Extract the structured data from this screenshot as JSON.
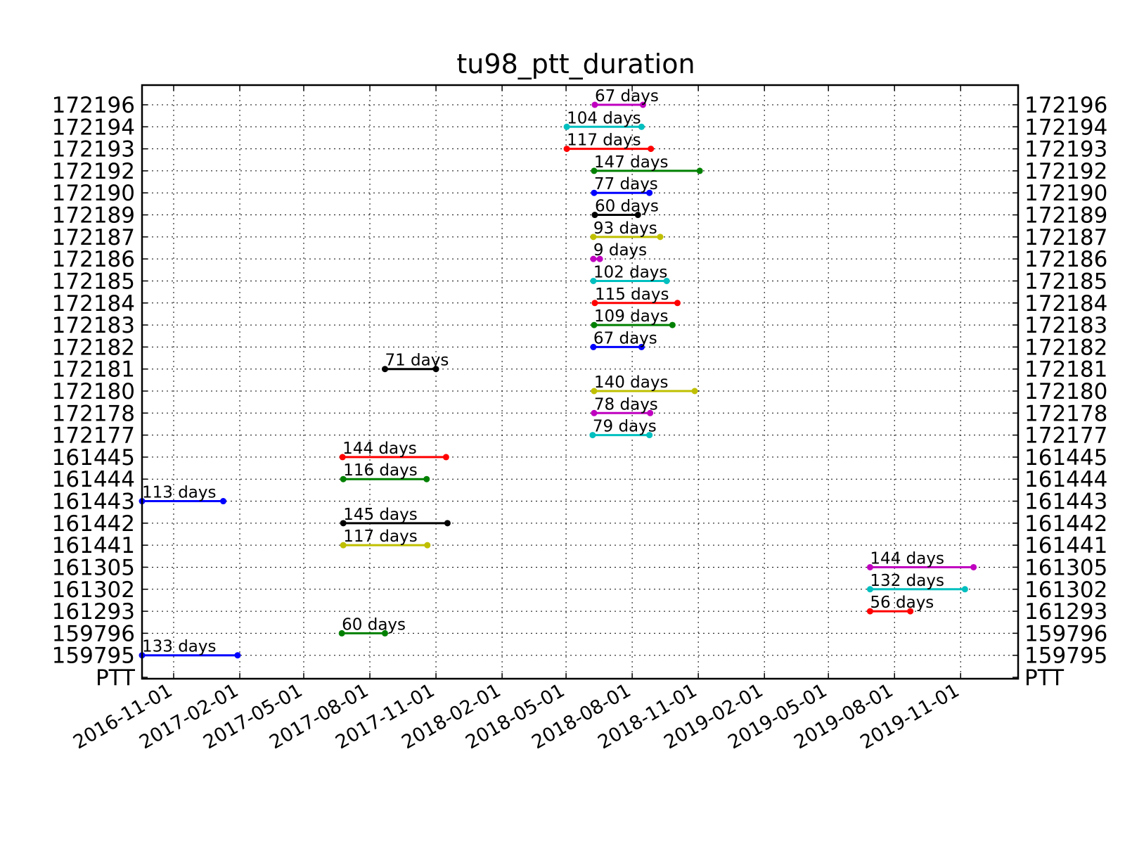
{
  "chart_data": {
    "type": "gantt",
    "title": "tu98_ptt_duration",
    "xlabel": "",
    "ylabel": "",
    "x_axis": "date",
    "xlim": [
      "2016-09-18",
      "2020-01-20"
    ],
    "x_ticks": [
      "2016-11-01",
      "2017-02-01",
      "2017-05-01",
      "2017-08-01",
      "2017-11-01",
      "2018-02-01",
      "2018-05-01",
      "2018-08-01",
      "2018-11-01",
      "2019-02-01",
      "2019-05-01",
      "2019-08-01",
      "2019-11-01"
    ],
    "y_categories": [
      "PTT",
      "159795",
      "159796",
      "161293",
      "161302",
      "161305",
      "161441",
      "161442",
      "161443",
      "161444",
      "161445",
      "172177",
      "172178",
      "172180",
      "172181",
      "172182",
      "172183",
      "172184",
      "172185",
      "172186",
      "172187",
      "172189",
      "172190",
      "172192",
      "172193",
      "172194",
      "172196"
    ],
    "y_ticks_both_sides": true,
    "grid": true,
    "grid_style": "dotted",
    "series": [
      {
        "ptt": "159795",
        "start": "2016-09-18",
        "end": "2017-01-29",
        "label": "133 days",
        "color": "#0000ff"
      },
      {
        "ptt": "159796",
        "start": "2017-06-23",
        "end": "2017-08-22",
        "label": "60 days",
        "color": "#008000"
      },
      {
        "ptt": "161293",
        "start": "2019-06-28",
        "end": "2019-08-23",
        "label": "56 days",
        "color": "#ff0000"
      },
      {
        "ptt": "161302",
        "start": "2019-06-28",
        "end": "2019-11-07",
        "label": "132 days",
        "color": "#00bfbf"
      },
      {
        "ptt": "161305",
        "start": "2019-06-28",
        "end": "2019-11-19",
        "label": "144 days",
        "color": "#bf00bf"
      },
      {
        "ptt": "161441",
        "start": "2017-06-25",
        "end": "2017-10-20",
        "label": "117 days",
        "color": "#bfbf00"
      },
      {
        "ptt": "161442",
        "start": "2017-06-25",
        "end": "2017-11-17",
        "label": "145 days",
        "color": "#000000"
      },
      {
        "ptt": "161443",
        "start": "2016-09-18",
        "end": "2017-01-09",
        "label": "113 days",
        "color": "#0000ff"
      },
      {
        "ptt": "161444",
        "start": "2017-06-25",
        "end": "2017-10-19",
        "label": "116 days",
        "color": "#008000"
      },
      {
        "ptt": "161445",
        "start": "2017-06-24",
        "end": "2017-11-15",
        "label": "144 days",
        "color": "#ff0000"
      },
      {
        "ptt": "172177",
        "start": "2018-06-07",
        "end": "2018-08-25",
        "label": "79 days",
        "color": "#00bfbf"
      },
      {
        "ptt": "172178",
        "start": "2018-06-09",
        "end": "2018-08-26",
        "label": "78 days",
        "color": "#bf00bf"
      },
      {
        "ptt": "172180",
        "start": "2018-06-09",
        "end": "2018-10-27",
        "label": "140 days",
        "color": "#bfbf00"
      },
      {
        "ptt": "172181",
        "start": "2017-08-22",
        "end": "2017-11-01",
        "label": "71 days",
        "color": "#000000"
      },
      {
        "ptt": "172182",
        "start": "2018-06-08",
        "end": "2018-08-14",
        "label": "67 days",
        "color": "#0000ff"
      },
      {
        "ptt": "172183",
        "start": "2018-06-09",
        "end": "2018-09-26",
        "label": "109 days",
        "color": "#008000"
      },
      {
        "ptt": "172184",
        "start": "2018-06-10",
        "end": "2018-10-03",
        "label": "115 days",
        "color": "#ff0000"
      },
      {
        "ptt": "172185",
        "start": "2018-06-08",
        "end": "2018-09-18",
        "label": "102 days",
        "color": "#00bfbf"
      },
      {
        "ptt": "172186",
        "start": "2018-06-08",
        "end": "2018-06-17",
        "label": "9 days",
        "color": "#bf00bf"
      },
      {
        "ptt": "172187",
        "start": "2018-06-08",
        "end": "2018-09-09",
        "label": "93 days",
        "color": "#bfbf00"
      },
      {
        "ptt": "172189",
        "start": "2018-06-10",
        "end": "2018-08-09",
        "label": "60 days",
        "color": "#000000"
      },
      {
        "ptt": "172190",
        "start": "2018-06-09",
        "end": "2018-08-25",
        "label": "77 days",
        "color": "#0000ff"
      },
      {
        "ptt": "172192",
        "start": "2018-06-09",
        "end": "2018-11-03",
        "label": "147 days",
        "color": "#008000"
      },
      {
        "ptt": "172193",
        "start": "2018-05-02",
        "end": "2018-08-27",
        "label": "117 days",
        "color": "#ff0000"
      },
      {
        "ptt": "172194",
        "start": "2018-05-02",
        "end": "2018-08-14",
        "label": "104 days",
        "color": "#00bfbf"
      },
      {
        "ptt": "172196",
        "start": "2018-06-10",
        "end": "2018-08-16",
        "label": "67 days",
        "color": "#bf00bf"
      }
    ]
  }
}
